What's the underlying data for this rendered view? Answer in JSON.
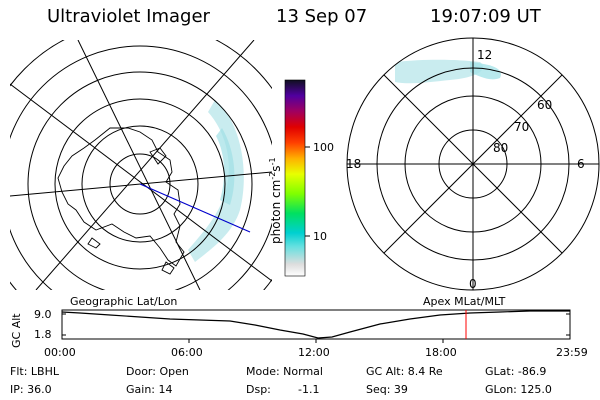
{
  "header": {
    "title": "Ultraviolet Imager",
    "date": "13 Sep 07",
    "time": "19:07:09 UT"
  },
  "colorbar": {
    "unit": "photon cm",
    "unit_exp": "-2",
    "unit_s": "s",
    "unit_s_exp": "-1",
    "ticks": [
      "100",
      "10"
    ]
  },
  "right_map": {
    "mlt_labels": {
      "top": "12",
      "left": "18",
      "right": "6",
      "bottom": "0"
    },
    "lat_labels": [
      "60",
      "70",
      "80"
    ]
  },
  "timeline": {
    "left_title": "Geographic Lat/Lon",
    "right_title": "Apex MLat/MLT",
    "y_axis_label": "GC Alt",
    "y_ticks": [
      "9.0",
      "1.8"
    ],
    "x_ticks": [
      "00:00",
      "06:00",
      "12:00",
      "18:00",
      "23:59"
    ],
    "current_time_marker": "19:07"
  },
  "info": {
    "row1": {
      "filter": "Flt: LBHL",
      "door": "Door: Open",
      "mode": "Mode: Normal",
      "gc_alt": "GC Alt: 8.4 Re",
      "glat": "GLat: -86.9"
    },
    "row2": {
      "ip": "IP: 36.0",
      "gain": "Gain: 14",
      "dsp": "Dsp:",
      "dsp_val": "-1.1",
      "seq": "Seq: 39",
      "glon": "GLon: 125.0"
    }
  },
  "colors": {
    "aurora": "#bfe9ec",
    "accent_line": "#0000cc",
    "marker": "#ff0000"
  }
}
